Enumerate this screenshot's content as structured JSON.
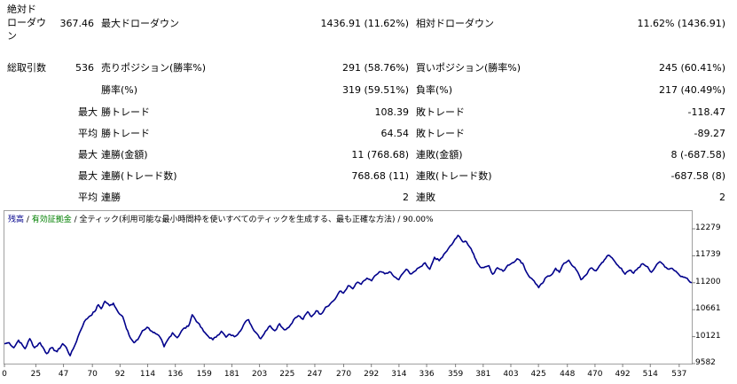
{
  "row1": {
    "label_abs": "絶対ド\nローダウ\nン",
    "value_abs": "367.46",
    "label_max": "最大ドローダウン",
    "value_max": "1436.91 (11.62%)",
    "label_rel": "相対ドローダウン",
    "value_rel": "11.62% (1436.91)"
  },
  "stats": {
    "total_label": "総取引数",
    "total_value": "536",
    "sell_label": "売りポジション(勝率%)",
    "sell_value": "291 (58.76%)",
    "buy_label": "買いポジション(勝率%)",
    "buy_value": "245 (60.41%)",
    "win_rate_label": "勝率(%)",
    "win_rate_value": "319 (59.51%)",
    "loss_rate_label": "負率(%)",
    "loss_rate_value": "217 (40.49%)",
    "max_prefix": "最大",
    "avg_prefix": "平均",
    "max_win_trade_label": "勝トレード",
    "max_win_trade_value": "108.39",
    "max_loss_trade_label": "敗トレード",
    "max_loss_trade_value": "-118.47",
    "avg_win_trade_label": "勝トレード",
    "avg_win_trade_value": "64.54",
    "avg_loss_trade_label": "敗トレード",
    "avg_loss_trade_value": "-89.27",
    "max_consec_win_amount_label": "連勝(金額)",
    "max_consec_win_amount_value": "11 (768.68)",
    "max_consec_loss_amount_label": "連敗(金額)",
    "max_consec_loss_amount_value": "8 (-687.58)",
    "max_consec_win_trades_label": "連勝(トレード数)",
    "max_consec_win_trades_value": "768.68 (11)",
    "max_consec_loss_trades_label": "連敗(トレード数)",
    "max_consec_loss_trades_value": "-687.58 (8)",
    "avg_consec_win_label": "連勝",
    "avg_consec_win_value": "2",
    "avg_consec_loss_label": "連敗",
    "avg_consec_loss_value": "2"
  },
  "legend": {
    "balance": "残高",
    "sep1": " / ",
    "equity": "有効証拠金",
    "rest": " / 全ティック(利用可能な最小時間枠を使いすべてのティックを生成する、最も正確な方法) / 90.00%"
  },
  "chart_data": {
    "type": "line",
    "title": "",
    "xlabel": "",
    "ylabel": "",
    "color": "#00008b",
    "ylim": [
      9582,
      12279
    ],
    "xlim": [
      0,
      547
    ],
    "yticks": [
      "12279",
      "11739",
      "11200",
      "10661",
      "10121",
      "9582"
    ],
    "xticks": [
      0,
      25,
      47,
      70,
      92,
      114,
      136,
      159,
      181,
      203,
      225,
      247,
      270,
      292,
      314,
      336,
      359,
      381,
      403,
      425,
      448,
      470,
      492,
      514,
      537
    ],
    "series": [
      {
        "anchors": [
          [
            0,
            9980
          ],
          [
            5,
            10000
          ],
          [
            10,
            9900
          ],
          [
            15,
            10050
          ],
          [
            22,
            9880
          ],
          [
            27,
            10080
          ],
          [
            32,
            9900
          ],
          [
            38,
            10000
          ],
          [
            45,
            9780
          ],
          [
            50,
            9900
          ],
          [
            56,
            9820
          ],
          [
            62,
            9980
          ],
          [
            66,
            9900
          ],
          [
            70,
            9740
          ],
          [
            75,
            9950
          ],
          [
            80,
            10200
          ],
          [
            85,
            10420
          ],
          [
            90,
            10520
          ],
          [
            96,
            10620
          ],
          [
            100,
            10760
          ],
          [
            103,
            10680
          ],
          [
            107,
            10830
          ],
          [
            112,
            10740
          ],
          [
            116,
            10790
          ],
          [
            120,
            10650
          ],
          [
            126,
            10520
          ],
          [
            130,
            10280
          ],
          [
            134,
            10100
          ],
          [
            138,
            10000
          ],
          [
            142,
            10060
          ],
          [
            147,
            10240
          ],
          [
            152,
            10310
          ],
          [
            157,
            10230
          ],
          [
            161,
            10180
          ],
          [
            166,
            10100
          ],
          [
            170,
            9920
          ],
          [
            174,
            10060
          ],
          [
            179,
            10200
          ],
          [
            184,
            10100
          ],
          [
            190,
            10270
          ],
          [
            196,
            10330
          ],
          [
            200,
            10560
          ],
          [
            206,
            10400
          ],
          [
            212,
            10230
          ],
          [
            217,
            10130
          ],
          [
            222,
            10060
          ],
          [
            227,
            10150
          ],
          [
            231,
            10230
          ],
          [
            236,
            10110
          ],
          [
            240,
            10170
          ],
          [
            245,
            10120
          ],
          [
            250,
            10210
          ],
          [
            256,
            10400
          ],
          [
            260,
            10460
          ],
          [
            264,
            10300
          ],
          [
            269,
            10180
          ],
          [
            273,
            10080
          ],
          [
            278,
            10230
          ],
          [
            283,
            10340
          ],
          [
            288,
            10240
          ],
          [
            293,
            10380
          ],
          [
            298,
            10260
          ],
          [
            303,
            10310
          ],
          [
            308,
            10460
          ],
          [
            313,
            10540
          ],
          [
            318,
            10470
          ],
          [
            323,
            10620
          ],
          [
            327,
            10520
          ],
          [
            332,
            10640
          ],
          [
            337,
            10570
          ],
          [
            342,
            10710
          ],
          [
            347,
            10780
          ],
          [
            352,
            10870
          ],
          [
            357,
            11030
          ],
          [
            361,
            10990
          ],
          [
            366,
            11140
          ],
          [
            371,
            11080
          ],
          [
            376,
            11210
          ],
          [
            380,
            11170
          ],
          [
            386,
            11290
          ],
          [
            391,
            11240
          ],
          [
            396,
            11360
          ],
          [
            401,
            11420
          ],
          [
            405,
            11380
          ],
          [
            410,
            11420
          ],
          [
            415,
            11320
          ],
          [
            420,
            11260
          ],
          [
            424,
            11380
          ],
          [
            428,
            11470
          ],
          [
            432,
            11380
          ],
          [
            438,
            11440
          ],
          [
            443,
            11520
          ],
          [
            448,
            11600
          ],
          [
            453,
            11470
          ],
          [
            458,
            11710
          ],
          [
            463,
            11640
          ],
          [
            468,
            11770
          ],
          [
            473,
            11890
          ],
          [
            478,
            12010
          ],
          [
            483,
            12150
          ],
          [
            488,
            12020
          ],
          [
            492,
            12020
          ],
          [
            497,
            11880
          ],
          [
            501,
            11700
          ],
          [
            505,
            11560
          ],
          [
            508,
            11500
          ],
          [
            512,
            11520
          ],
          [
            516,
            11540
          ],
          [
            520,
            11370
          ],
          [
            525,
            11500
          ],
          [
            531,
            11430
          ],
          [
            536,
            11550
          ],
          [
            541,
            11600
          ],
          [
            546,
            11680
          ],
          [
            552,
            11590
          ],
          [
            556,
            11410
          ],
          [
            560,
            11300
          ],
          [
            564,
            11240
          ],
          [
            569,
            11100
          ],
          [
            573,
            11190
          ],
          [
            577,
            11310
          ],
          [
            582,
            11350
          ],
          [
            587,
            11490
          ],
          [
            591,
            11410
          ],
          [
            596,
            11590
          ],
          [
            601,
            11650
          ],
          [
            606,
            11520
          ],
          [
            610,
            11430
          ],
          [
            614,
            11260
          ],
          [
            619,
            11350
          ],
          [
            624,
            11490
          ],
          [
            630,
            11440
          ],
          [
            635,
            11570
          ],
          [
            639,
            11660
          ],
          [
            643,
            11750
          ],
          [
            647,
            11700
          ],
          [
            652,
            11570
          ],
          [
            657,
            11490
          ],
          [
            661,
            11370
          ],
          [
            666,
            11450
          ],
          [
            670,
            11390
          ],
          [
            675,
            11500
          ],
          [
            680,
            11580
          ],
          [
            685,
            11520
          ],
          [
            689,
            11410
          ],
          [
            693,
            11510
          ],
          [
            698,
            11620
          ],
          [
            702,
            11560
          ],
          [
            706,
            11480
          ],
          [
            711,
            11490
          ],
          [
            715,
            11430
          ],
          [
            719,
            11350
          ],
          [
            723,
            11310
          ],
          [
            727,
            11290
          ],
          [
            732,
            11200
          ]
        ]
      }
    ]
  }
}
